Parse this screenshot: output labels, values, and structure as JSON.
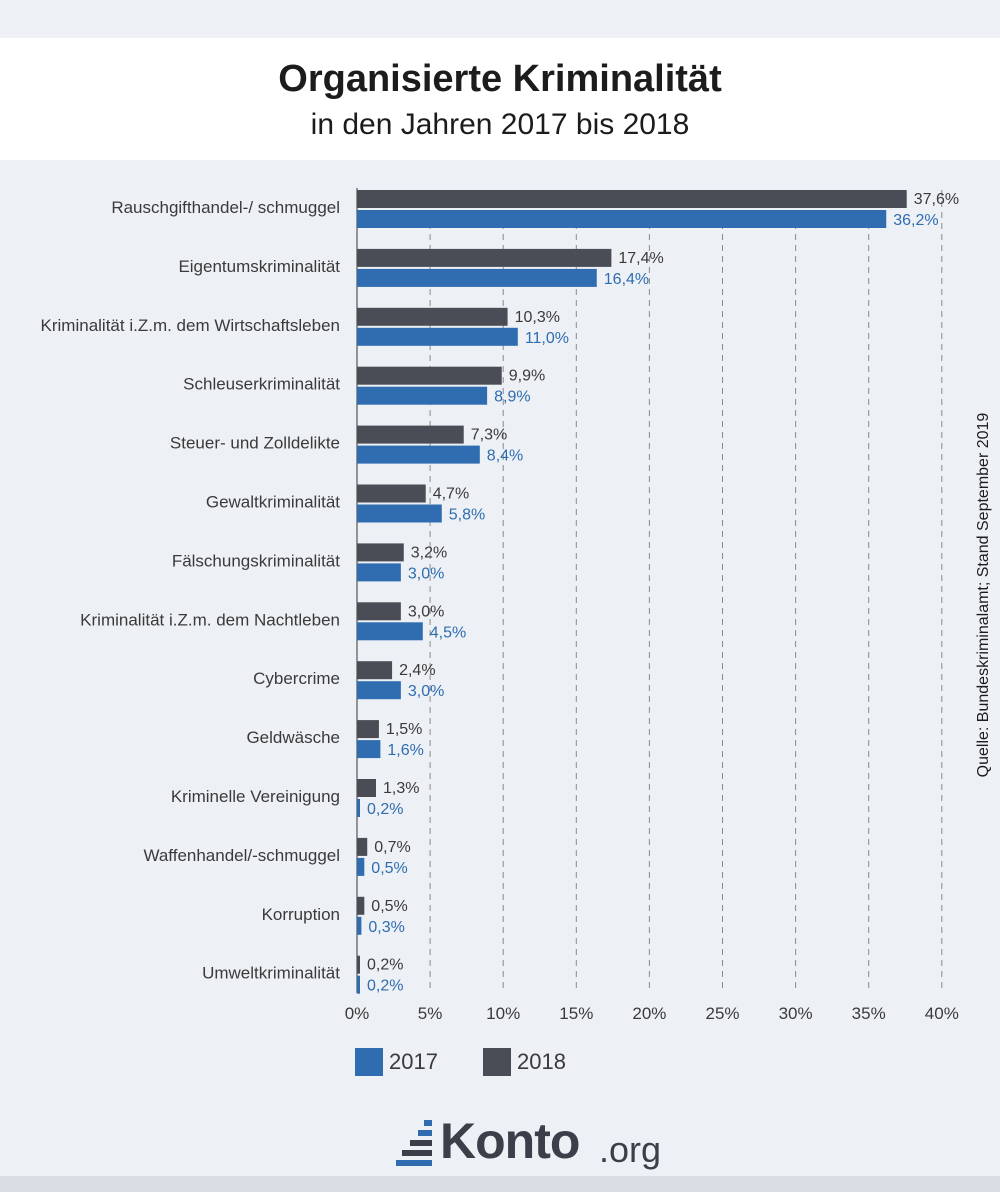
{
  "header": {
    "title": "Organisierte Kriminalität",
    "subtitle": "in den Jahren 2017 bis 2018"
  },
  "source": "Quelle: Bundeskriminalamt; Stand September 2019",
  "legend": {
    "items": [
      {
        "label": "2017",
        "color": "#2f6cb0"
      },
      {
        "label": "2018",
        "color": "#4a4d55"
      }
    ]
  },
  "logo": {
    "name": "Konto",
    "tld": ".org",
    "icon": "stacked-bars-icon"
  },
  "colors": {
    "series_2017": "#2f6cb0",
    "series_2018": "#4a4d55",
    "label_2017": "#2f6cb0",
    "label_2018": "#3a3a3a",
    "grid": "#8a8a8a"
  },
  "chart_data": {
    "type": "bar",
    "orientation": "horizontal",
    "categories": [
      "Rauschgifthandel-/ schmuggel",
      "Eigentumskriminalität",
      "Kriminalität i.Z.m. dem Wirtschaftsleben",
      "Schleuserkriminalität",
      "Steuer- und Zolldelikte",
      "Gewaltkriminalität",
      "Fälschungskriminalität",
      "Kriminalität i.Z.m. dem Nachtleben",
      "Cybercrime",
      "Geldwäsche",
      "Kriminelle Vereinigung",
      "Waffenhandel/-schmuggel",
      "Korruption",
      "Umweltkriminalität"
    ],
    "series": [
      {
        "name": "2018",
        "values": [
          37.6,
          17.4,
          10.3,
          9.9,
          7.3,
          4.7,
          3.2,
          3.0,
          2.4,
          1.5,
          1.3,
          0.7,
          0.5,
          0.2
        ],
        "labels": [
          "37,6%",
          "17,4%",
          "10,3%",
          "9,9%",
          "7,3%",
          "4,7%",
          "3,2%",
          "3,0%",
          "2,4%",
          "1,5%",
          "1,3%",
          "0,7%",
          "0,5%",
          "0,2%"
        ]
      },
      {
        "name": "2017",
        "values": [
          36.2,
          16.4,
          11.0,
          8.9,
          8.4,
          5.8,
          3.0,
          4.5,
          3.0,
          1.6,
          0.2,
          0.5,
          0.3,
          0.2
        ],
        "labels": [
          "36,2%",
          "16,4%",
          "11,0%",
          "8,9%",
          "8,4%",
          "5,8%",
          "3,0%",
          "4,5%",
          "3,0%",
          "1,6%",
          "0,2%",
          "0,5%",
          "0,3%",
          "0,2%"
        ]
      }
    ],
    "xlim": [
      0,
      40
    ],
    "xticks": [
      "0%",
      "5%",
      "10%",
      "15%",
      "20%",
      "25%",
      "30%",
      "35%",
      "40%"
    ],
    "grid": true,
    "grid_style": "dashed",
    "legend_position": "bottom-left"
  }
}
